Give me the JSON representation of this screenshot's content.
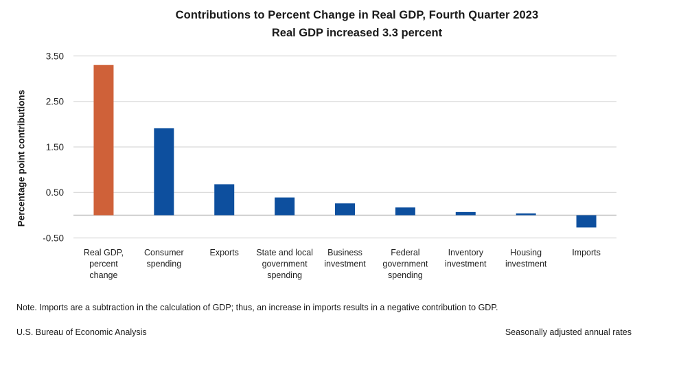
{
  "chart_data": {
    "type": "bar",
    "title": "Contributions to Percent Change in Real GDP, Fourth Quarter 2023",
    "subtitle": "Real GDP increased 3.3 percent",
    "ylabel": "Percentage point contributions",
    "xlabel": "",
    "categories": [
      "Real GDP,\npercent\nchange",
      "Consumer\nspending",
      "Exports",
      "State and local\ngovernment\nspending",
      "Business\ninvestment",
      "Federal\ngovernment\nspending",
      "Inventory\ninvestment",
      "Housing\ninvestment",
      "Imports"
    ],
    "values": [
      3.3,
      1.91,
      0.68,
      0.39,
      0.26,
      0.17,
      0.07,
      0.04,
      -0.27
    ],
    "highlight_index": 0,
    "yticks": [
      3.5,
      2.5,
      1.5,
      0.5,
      -0.5
    ],
    "ytick_labels": [
      "3.50",
      "2.50",
      "1.50",
      "0.50",
      "-0.50"
    ],
    "ylim": [
      -0.5,
      3.5
    ],
    "grid": true,
    "legend": false,
    "colors": {
      "highlight_bar": "#cf6139",
      "bar": "#0d4f9e",
      "gridline": "#dcdcdc",
      "zeroline": "#c0c0c0",
      "tick_text": "#262626",
      "category_text": "#1f1f1f"
    }
  },
  "footnotes": {
    "note": "Note. Imports are a subtraction in the calculation of GDP; thus, an increase in imports results in a negative contribution to GDP.",
    "source": "U.S. Bureau of Economic Analysis",
    "rates": "Seasonally adjusted annual rates"
  }
}
